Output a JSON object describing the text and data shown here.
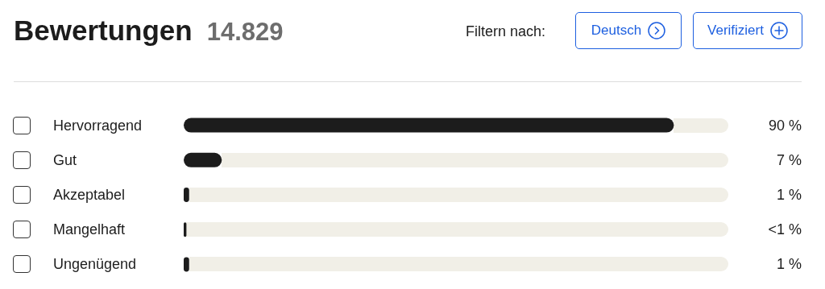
{
  "chart_data": {
    "type": "bar",
    "orientation": "horizontal",
    "title": "Bewertungen",
    "subtitle": "14.829",
    "annotations": [
      "Filtern nach:",
      "Deutsch",
      "Verifiziert"
    ],
    "categories": [
      "Hervorragend",
      "Gut",
      "Akzeptabel",
      "Mangelhaft",
      "Ungenügend"
    ],
    "values": [
      90,
      7,
      1,
      0.5,
      1
    ],
    "value_labels": [
      "90 %",
      "7 %",
      "1 %",
      "<1 %",
      "1 %"
    ],
    "color": "#1c1c1c"
  }
}
